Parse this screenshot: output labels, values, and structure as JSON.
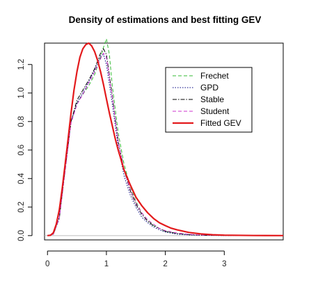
{
  "chart_data": {
    "type": "line",
    "title": "Density of estimations and best fitting GEV",
    "xlabel": "",
    "ylabel": "",
    "xlim": [
      -0.05,
      4.0
    ],
    "ylim": [
      -0.03,
      1.35
    ],
    "x_ticks": [
      "0",
      "1",
      "2",
      "3"
    ],
    "y_ticks": [
      "0.0",
      "0.2",
      "0.4",
      "0.6",
      "0.8",
      "1.0",
      "1.2"
    ],
    "legend_position": "top-right",
    "baseline": {
      "y": 0,
      "color": "#bdbdbd"
    },
    "series": [
      {
        "name": "Frechet",
        "color": "#33bb33",
        "dash": "dashed",
        "width": 1,
        "x": [
          0,
          0.1,
          0.2,
          0.3,
          0.4,
          0.5,
          0.6,
          0.7,
          0.8,
          0.9,
          0.95,
          1.0,
          1.05,
          1.1,
          1.2,
          1.3,
          1.4,
          1.5,
          1.6,
          1.7,
          1.8,
          1.9,
          2.0,
          2.2,
          2.4,
          2.6,
          3.0,
          3.5,
          4.0
        ],
        "y": [
          0,
          0.01,
          0.12,
          0.45,
          0.8,
          0.93,
          0.99,
          1.05,
          1.13,
          1.25,
          1.32,
          1.38,
          1.27,
          1.05,
          0.72,
          0.5,
          0.35,
          0.24,
          0.16,
          0.11,
          0.07,
          0.05,
          0.03,
          0.015,
          0.007,
          0.003,
          0.001,
          0,
          0
        ]
      },
      {
        "name": "GPD",
        "color": "#000080",
        "dash": "dotted",
        "width": 1,
        "x": [
          0,
          0.1,
          0.2,
          0.3,
          0.4,
          0.5,
          0.6,
          0.7,
          0.8,
          0.9,
          0.95,
          1.0,
          1.1,
          1.2,
          1.3,
          1.4,
          1.5,
          1.6,
          1.7,
          1.8,
          1.9,
          2.0,
          2.2,
          2.4,
          2.6,
          3.0,
          3.5,
          4.0
        ],
        "y": [
          0,
          0.01,
          0.13,
          0.47,
          0.8,
          0.93,
          1.0,
          1.08,
          1.16,
          1.26,
          1.27,
          1.2,
          0.92,
          0.62,
          0.42,
          0.29,
          0.2,
          0.13,
          0.09,
          0.06,
          0.04,
          0.025,
          0.01,
          0.005,
          0.002,
          0,
          0,
          0
        ]
      },
      {
        "name": "Stable",
        "color": "#000000",
        "dash": "dashdot",
        "width": 1,
        "x": [
          0,
          0.1,
          0.2,
          0.3,
          0.4,
          0.5,
          0.6,
          0.7,
          0.8,
          0.9,
          0.95,
          1.0,
          1.1,
          1.2,
          1.3,
          1.4,
          1.5,
          1.6,
          1.7,
          1.8,
          1.9,
          2.0,
          2.2,
          2.4,
          2.6,
          3.0,
          3.5,
          4.0
        ],
        "y": [
          0,
          0.01,
          0.12,
          0.46,
          0.8,
          0.95,
          1.02,
          1.09,
          1.17,
          1.28,
          1.31,
          1.27,
          0.98,
          0.66,
          0.46,
          0.32,
          0.22,
          0.15,
          0.1,
          0.07,
          0.05,
          0.03,
          0.015,
          0.007,
          0.003,
          0.001,
          0,
          0
        ]
      },
      {
        "name": "Student",
        "color": "#cc33cc",
        "dash": "dashed",
        "width": 1,
        "x": [
          0,
          0.1,
          0.2,
          0.3,
          0.4,
          0.5,
          0.6,
          0.7,
          0.8,
          0.9,
          0.95,
          1.0,
          1.1,
          1.2,
          1.3,
          1.4,
          1.5,
          1.6,
          1.7,
          1.8,
          1.9,
          2.0,
          2.2,
          2.4,
          2.6,
          3.0,
          3.5,
          4.0
        ],
        "y": [
          0,
          0.01,
          0.12,
          0.45,
          0.79,
          0.92,
          0.99,
          1.07,
          1.15,
          1.24,
          1.28,
          1.25,
          0.97,
          0.66,
          0.46,
          0.33,
          0.23,
          0.16,
          0.11,
          0.08,
          0.05,
          0.035,
          0.018,
          0.009,
          0.004,
          0.001,
          0,
          0
        ]
      },
      {
        "name": "Fitted GEV",
        "color": "#e31a1c",
        "dash": "solid",
        "width": 2.2,
        "x": [
          0,
          0.05,
          0.1,
          0.15,
          0.2,
          0.25,
          0.3,
          0.35,
          0.4,
          0.45,
          0.5,
          0.55,
          0.6,
          0.65,
          0.7,
          0.75,
          0.8,
          0.85,
          0.9,
          0.95,
          1.0,
          1.05,
          1.1,
          1.15,
          1.2,
          1.3,
          1.4,
          1.5,
          1.6,
          1.7,
          1.8,
          1.9,
          2.0,
          2.1,
          2.2,
          2.4,
          2.6,
          2.8,
          3.0,
          3.5,
          4.0
        ],
        "y": [
          0,
          0.002,
          0.02,
          0.08,
          0.18,
          0.33,
          0.5,
          0.68,
          0.86,
          1.02,
          1.15,
          1.25,
          1.31,
          1.34,
          1.35,
          1.33,
          1.29,
          1.23,
          1.15,
          1.06,
          0.96,
          0.86,
          0.77,
          0.68,
          0.6,
          0.46,
          0.36,
          0.27,
          0.21,
          0.16,
          0.12,
          0.09,
          0.07,
          0.052,
          0.04,
          0.022,
          0.012,
          0.006,
          0.003,
          0.0005,
          0
        ]
      }
    ]
  }
}
